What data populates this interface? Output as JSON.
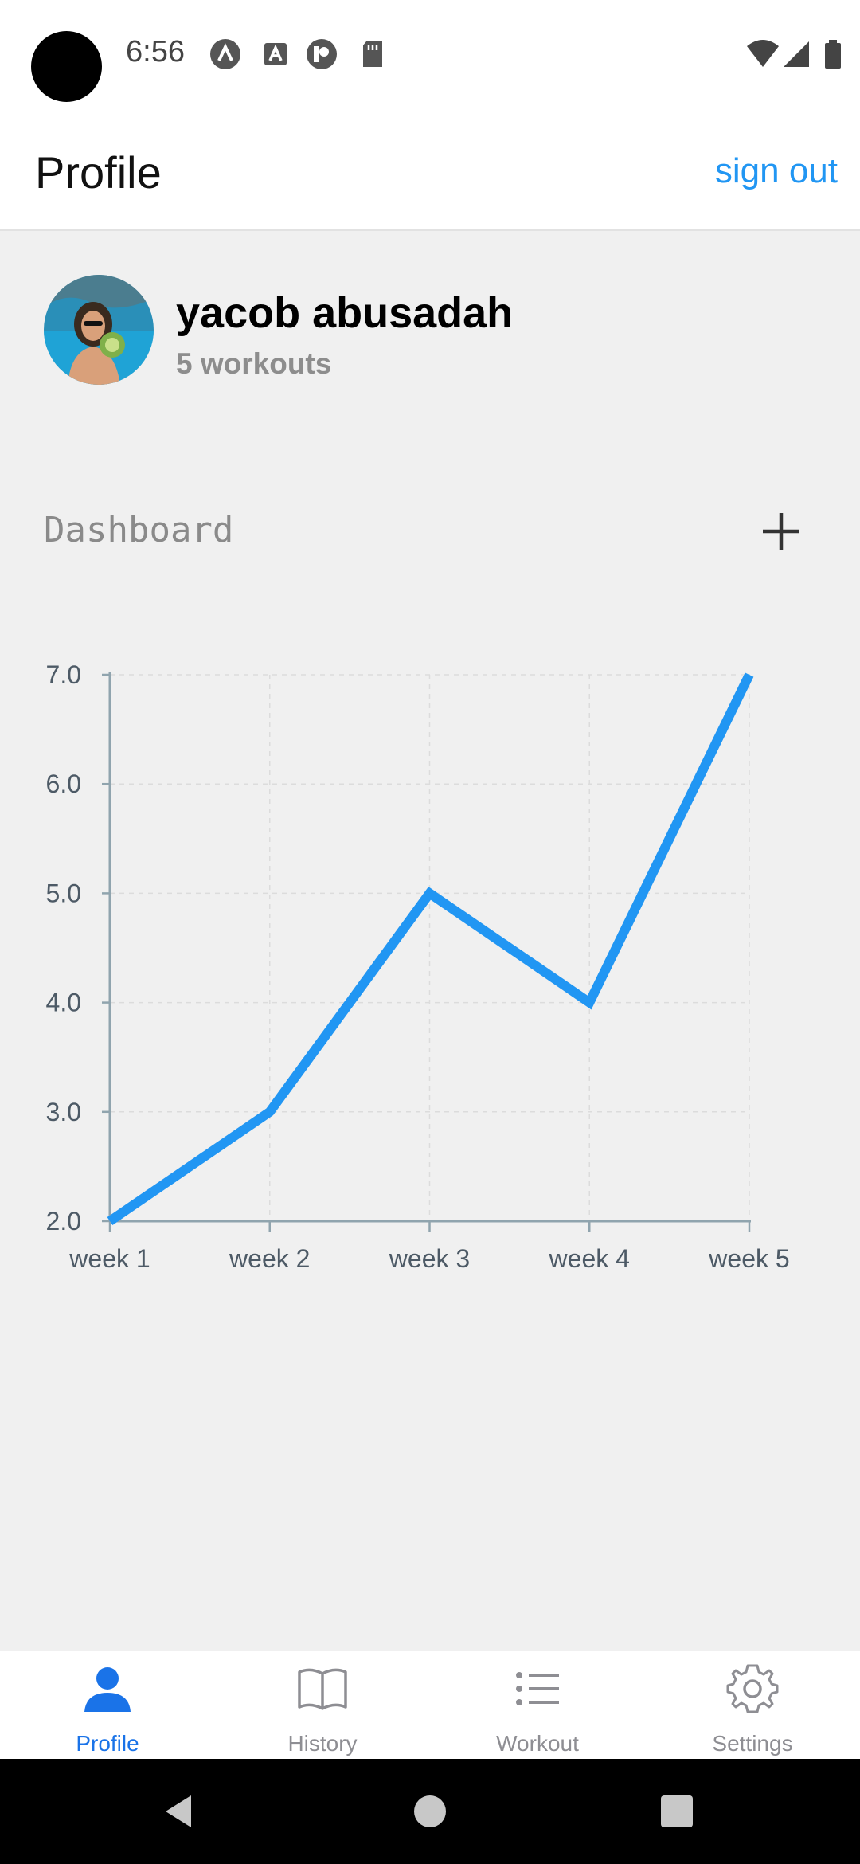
{
  "status_bar": {
    "time": "6:56",
    "icons": [
      "app-a-icon",
      "font-a-icon",
      "circle-p-icon",
      "sd-card-icon"
    ],
    "right_icons": [
      "wifi-icon",
      "signal-icon",
      "battery-icon"
    ]
  },
  "header": {
    "title": "Profile",
    "sign_out": "sign out",
    "accent_color": "#2196f3"
  },
  "profile": {
    "name": "yacob abusadah",
    "workouts": "5 workouts"
  },
  "dashboard": {
    "title": "Dashboard",
    "add_icon": "plus-icon"
  },
  "chart_data": {
    "type": "line",
    "categories": [
      "week 1",
      "week 2",
      "week 3",
      "week 4",
      "week 5"
    ],
    "series": [
      {
        "values": [
          2.0,
          3.0,
          5.0,
          4.0,
          7.0
        ],
        "color": "#2196f3"
      }
    ],
    "yticks": [
      "2.0",
      "3.0",
      "4.0",
      "5.0",
      "6.0",
      "7.0"
    ],
    "ylim": [
      2.0,
      7.0
    ],
    "grid": true,
    "title": "",
    "xlabel": "",
    "ylabel": ""
  },
  "tabs": [
    {
      "label": "Profile",
      "icon": "person-icon",
      "active": true
    },
    {
      "label": "History",
      "icon": "book-icon",
      "active": false
    },
    {
      "label": "Workout",
      "icon": "list-icon",
      "active": false
    },
    {
      "label": "Settings",
      "icon": "gear-icon",
      "active": false
    }
  ],
  "nav": [
    "back-icon",
    "home-icon",
    "recents-icon"
  ]
}
